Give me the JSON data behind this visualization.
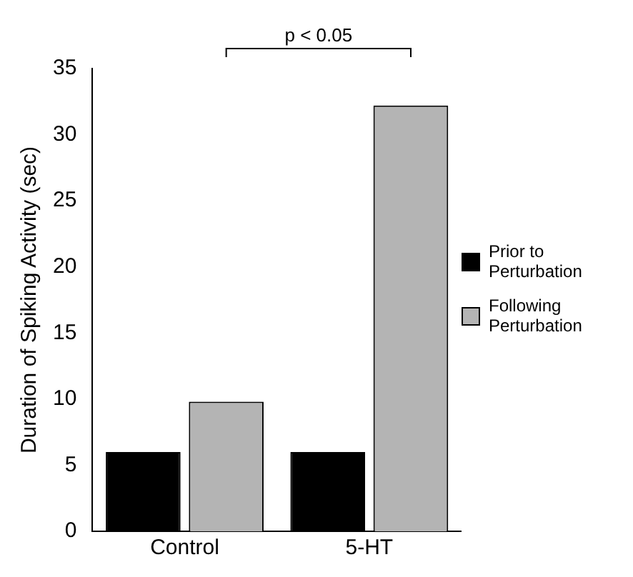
{
  "chart_data": {
    "type": "bar",
    "ylabel": "Duration of Spiking Activity (sec)",
    "categories": [
      "Control",
      "5-HT"
    ],
    "series": [
      {
        "name": "Prior to Perturbation",
        "color": "#000000",
        "values": [
          6.0,
          6.0
        ]
      },
      {
        "name": "Following Perturbation",
        "color": "#b4b4b4",
        "values": [
          9.8,
          32.2
        ]
      }
    ],
    "ylim": [
      0,
      35
    ],
    "yticks": [
      0,
      5,
      10,
      15,
      20,
      25,
      30,
      35
    ],
    "grid": false,
    "legend": "right",
    "annotations": [
      "p < 0.05"
    ]
  }
}
